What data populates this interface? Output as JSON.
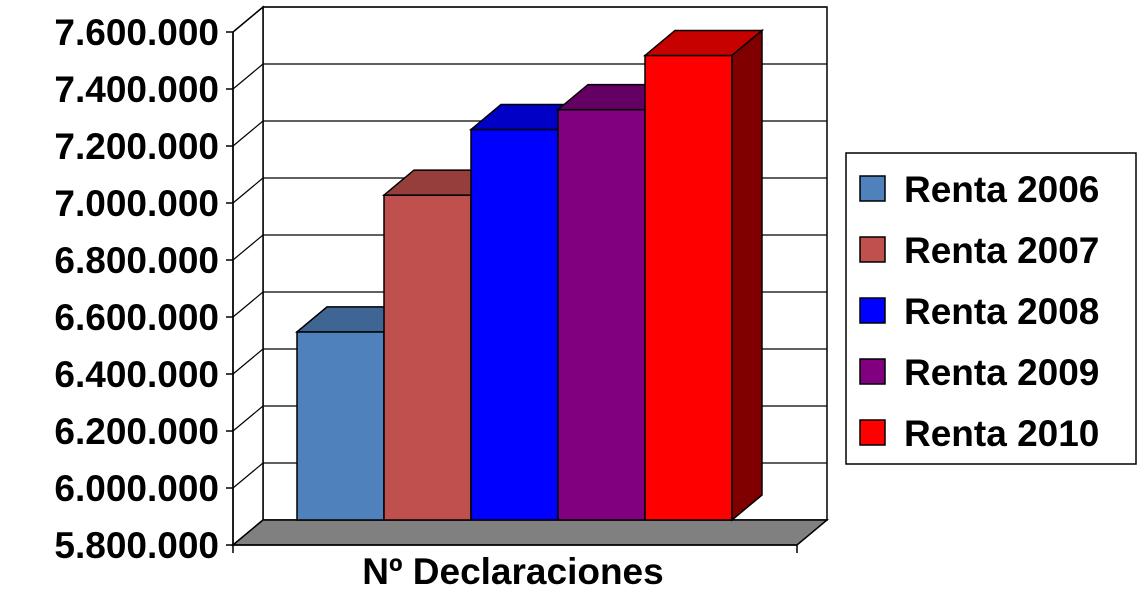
{
  "chart_data": {
    "type": "bar",
    "style": "3d-clustered",
    "categories": [
      "Nº Declaraciones"
    ],
    "xlabel": "Nº Declaraciones",
    "ylabel": "",
    "title": "",
    "ylim": [
      5800000,
      7600000
    ],
    "yticks": [
      "5.800.000",
      "6.000.000",
      "6.200.000",
      "6.400.000",
      "6.600.000",
      "6.800.000",
      "7.000.000",
      "7.200.000",
      "7.400.000",
      "7.600.000"
    ],
    "grid": true,
    "legend_position": "right",
    "series": [
      {
        "name": "Renta 2006",
        "values": [
          6460000
        ],
        "color": "#4F81BD"
      },
      {
        "name": "Renta 2007",
        "values": [
          6940000
        ],
        "color": "#C0504D"
      },
      {
        "name": "Renta 2008",
        "values": [
          7170000
        ],
        "color": "#0000FF"
      },
      {
        "name": "Renta 2009",
        "values": [
          7240000
        ],
        "color": "#800080"
      },
      {
        "name": "Renta 2010",
        "values": [
          7430000
        ],
        "color": "#FF0000"
      }
    ],
    "floor_color": "#808080"
  }
}
